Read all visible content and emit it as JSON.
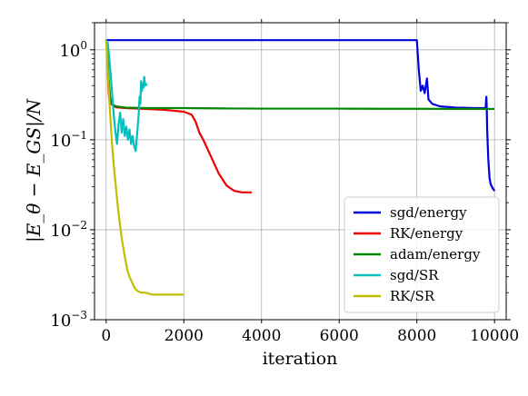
{
  "chart_data": {
    "type": "line",
    "title": "",
    "xlabel": "iteration",
    "ylabel": "|E_θ − E_GS|/N",
    "xlim": [
      -300,
      10300
    ],
    "ylim": [
      0.001,
      2.0
    ],
    "yscale": "log",
    "grid": true,
    "legend_position": "lower right",
    "x_ticks": [
      0,
      2000,
      4000,
      6000,
      8000,
      10000
    ],
    "x_tick_labels": [
      "0",
      "2000",
      "4000",
      "6000",
      "8000",
      "10000"
    ],
    "y_ticks": [
      0.001,
      0.01,
      0.1,
      1
    ],
    "y_tick_labels": [
      {
        "base": "10",
        "exp": "−3"
      },
      {
        "base": "10",
        "exp": "−2"
      },
      {
        "base": "10",
        "exp": "−1"
      },
      {
        "base": "10",
        "exp": "0"
      }
    ],
    "series": [
      {
        "name": "sgd/energy",
        "color": "#0000dd",
        "x": [
          0,
          50,
          100,
          200,
          500,
          1000,
          2000,
          3000,
          4000,
          5000,
          6000,
          7000,
          7900,
          8000,
          8050,
          8100,
          8150,
          8200,
          8260,
          8300,
          8400,
          8600,
          9000,
          9500,
          9700,
          9770,
          9790,
          9800,
          9810,
          9840,
          9870,
          9900,
          9950,
          10000
        ],
        "y": [
          1.28,
          1.28,
          1.28,
          1.28,
          1.28,
          1.28,
          1.28,
          1.28,
          1.28,
          1.28,
          1.28,
          1.28,
          1.28,
          1.28,
          0.6,
          0.35,
          0.4,
          0.33,
          0.48,
          0.28,
          0.25,
          0.235,
          0.228,
          0.225,
          0.225,
          0.225,
          0.3,
          0.22,
          0.13,
          0.06,
          0.038,
          0.032,
          0.029,
          0.027
        ]
      },
      {
        "name": "RK/energy",
        "color": "#ee0000",
        "x": [
          0,
          20,
          40,
          60,
          80,
          100,
          150,
          250,
          500,
          1000,
          1500,
          2000,
          2200,
          2300,
          2400,
          2500,
          2700,
          2900,
          3100,
          3300,
          3500,
          3750
        ],
        "y": [
          1.28,
          1.1,
          0.6,
          0.35,
          0.28,
          0.26,
          0.245,
          0.23,
          0.225,
          0.22,
          0.215,
          0.205,
          0.19,
          0.16,
          0.12,
          0.1,
          0.065,
          0.042,
          0.031,
          0.027,
          0.026,
          0.026
        ]
      },
      {
        "name": "adam/energy",
        "color": "#008800",
        "x": [
          0,
          30,
          60,
          100,
          150,
          250,
          500,
          1000,
          2000,
          3000,
          4000,
          5000,
          6000,
          7000,
          8000,
          9000,
          10000
        ],
        "y": [
          1.28,
          0.9,
          0.5,
          0.3,
          0.25,
          0.235,
          0.228,
          0.225,
          0.225,
          0.223,
          0.222,
          0.222,
          0.222,
          0.221,
          0.221,
          0.22,
          0.22
        ]
      },
      {
        "name": "sgd/SR",
        "color": "#00bfbf",
        "x": [
          0,
          40,
          80,
          120,
          160,
          200,
          240,
          280,
          320,
          360,
          400,
          440,
          480,
          520,
          560,
          600,
          640,
          680,
          720,
          760,
          800,
          840,
          860,
          880,
          900,
          920,
          940,
          960,
          980,
          1000,
          1020,
          1050
        ],
        "y": [
          1.28,
          1.2,
          0.8,
          0.5,
          0.3,
          0.18,
          0.12,
          0.09,
          0.15,
          0.2,
          0.12,
          0.17,
          0.11,
          0.14,
          0.1,
          0.13,
          0.09,
          0.11,
          0.085,
          0.075,
          0.12,
          0.2,
          0.3,
          0.25,
          0.45,
          0.35,
          0.42,
          0.38,
          0.5,
          0.4,
          0.42,
          0.4
        ]
      },
      {
        "name": "RK/SR",
        "color": "#bfbf00",
        "x": [
          0,
          50,
          100,
          150,
          200,
          250,
          300,
          350,
          400,
          450,
          500,
          550,
          600,
          650,
          700,
          750,
          800,
          900,
          1000,
          1200,
          1400,
          1600,
          1800,
          2000
        ],
        "y": [
          1.28,
          0.5,
          0.2,
          0.09,
          0.05,
          0.03,
          0.018,
          0.012,
          0.008,
          0.006,
          0.0045,
          0.0035,
          0.003,
          0.0027,
          0.0024,
          0.0022,
          0.0021,
          0.002,
          0.002,
          0.0019,
          0.0019,
          0.0019,
          0.0019,
          0.0019
        ]
      }
    ]
  }
}
